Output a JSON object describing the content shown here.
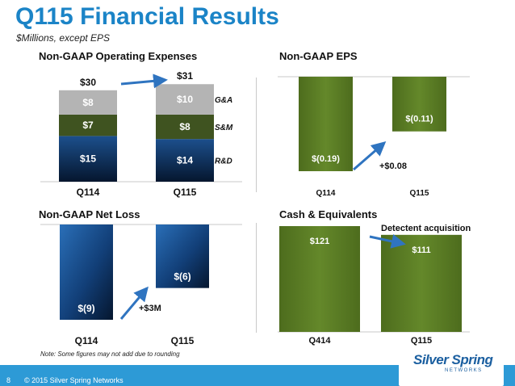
{
  "header": {
    "title": "Q115 Financial Results",
    "subtitle": "$Millions, except EPS"
  },
  "footer": {
    "page_number": "8",
    "copyright": "© 2015 Silver Spring Networks",
    "note": "Note:  Some figures may not add due to rounding",
    "logo_text": "Silver Spring",
    "logo_sub": "NETWORKS"
  },
  "colors": {
    "brand_blue": "#1b84c7",
    "green": "#5a7a22",
    "dark_green": "#3f5320",
    "gray": "#b4b4b4",
    "navy": "#0b2c58",
    "footer_blue": "#2d9ad6"
  },
  "chart_data": [
    {
      "type": "bar",
      "stacked": true,
      "title": "Non-GAAP Operating Expenses",
      "categories": [
        "Q114",
        "Q115"
      ],
      "series": [
        {
          "name": "R&D",
          "values": [
            15,
            14
          ],
          "labels": [
            "$15",
            "$14"
          ]
        },
        {
          "name": "S&M",
          "values": [
            7,
            8
          ],
          "labels": [
            "$7",
            "$8"
          ]
        },
        {
          "name": "G&A",
          "values": [
            8,
            10
          ],
          "labels": [
            "$8",
            "$10"
          ]
        }
      ],
      "totals": [
        30,
        31
      ],
      "total_labels": [
        "$30",
        "$31"
      ]
    },
    {
      "type": "bar",
      "title": "Non-GAAP EPS",
      "categories": [
        "Q114",
        "Q115"
      ],
      "values": [
        -0.19,
        -0.11
      ],
      "labels": [
        "$(0.19)",
        "$(0.11)"
      ],
      "annotation": "+$0.08"
    },
    {
      "type": "bar",
      "title": "Non-GAAP Net Loss",
      "categories": [
        "Q114",
        "Q115"
      ],
      "values": [
        -9,
        -6
      ],
      "labels": [
        "$(9)",
        "$(6)"
      ],
      "annotation": "+$3M"
    },
    {
      "type": "bar",
      "title": "Cash & Equivalents",
      "categories": [
        "Q414",
        "Q115"
      ],
      "values": [
        121,
        111
      ],
      "labels": [
        "$121",
        "$111"
      ],
      "annotation": "Detectent acquisition"
    }
  ]
}
